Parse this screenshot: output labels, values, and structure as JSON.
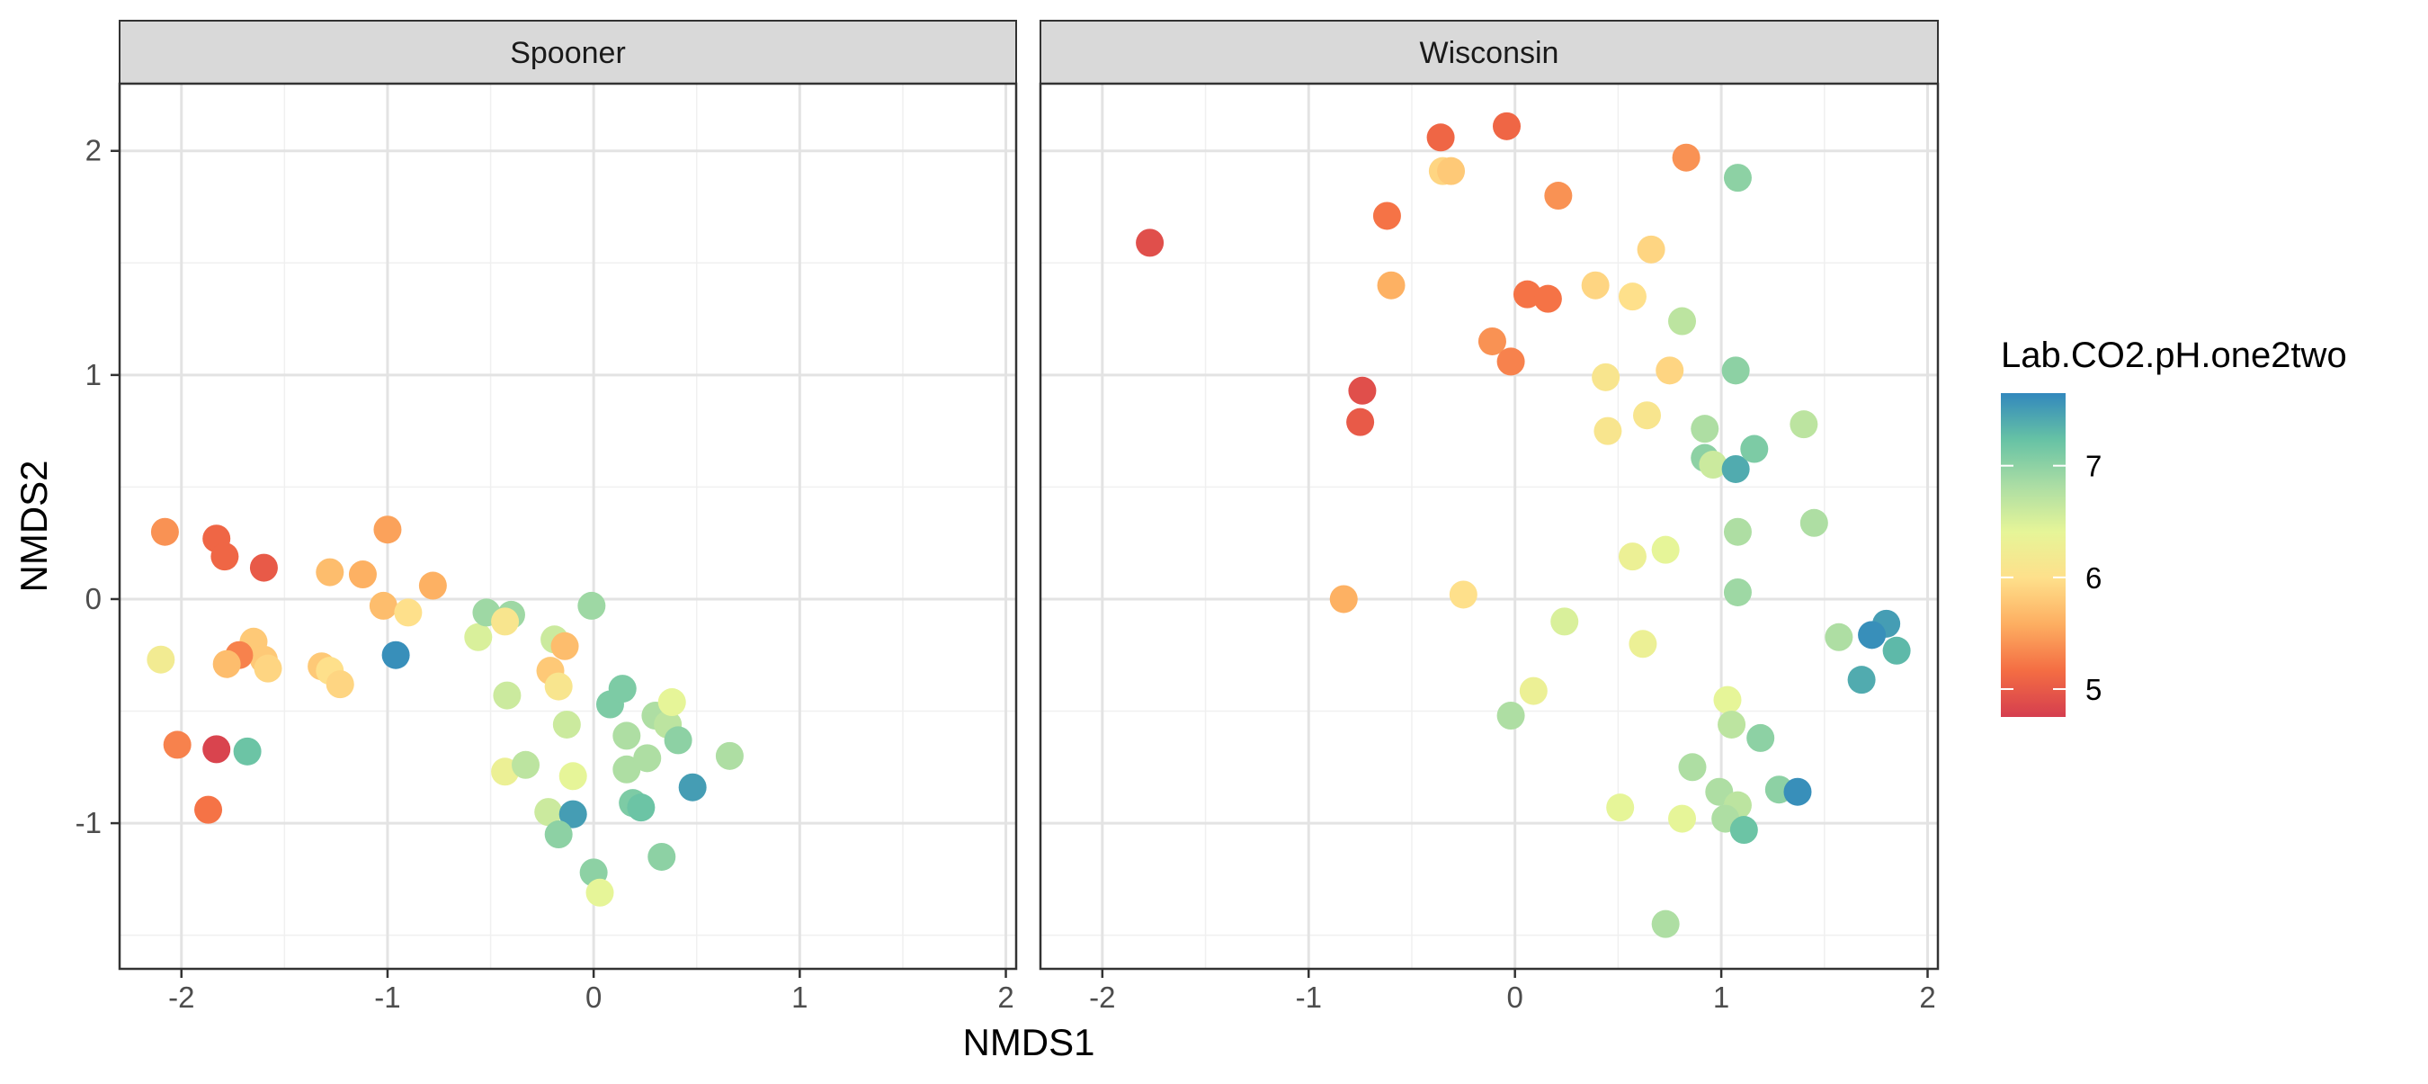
{
  "chart_data": {
    "type": "scatter",
    "facet_by": "site",
    "xlabel": "NMDS1",
    "ylabel": "NMDS2",
    "xlim": [
      -2.3,
      2.05
    ],
    "ylim": [
      -1.65,
      2.3
    ],
    "x_ticks": [
      -2,
      -1,
      0,
      1,
      2
    ],
    "y_ticks": [
      -1,
      0,
      1,
      2
    ],
    "x_tick_labels": [
      "-2",
      "-1",
      "0",
      "1",
      "2"
    ],
    "y_tick_labels": [
      "-1",
      "0",
      "1",
      "2"
    ],
    "grid": true,
    "legend": {
      "title": "Lab.CO2.pH.one2two",
      "placement": "right",
      "type": "colorbar",
      "min": 4.75,
      "max": 7.65,
      "ticks": [
        5,
        6,
        7
      ],
      "tick_labels": [
        "5",
        "6",
        "7"
      ],
      "colors": [
        "#d53e4f",
        "#f46d43",
        "#fdae61",
        "#fee08b",
        "#e6f598",
        "#abdda4",
        "#66c2a5",
        "#3288bd"
      ]
    },
    "panels": [
      {
        "name": "Spooner",
        "points": [
          {
            "x": -2.08,
            "y": 0.3,
            "ph": 5.4
          },
          {
            "x": -1.83,
            "y": 0.27,
            "ph": 5.1
          },
          {
            "x": -1.79,
            "y": 0.19,
            "ph": 5.1
          },
          {
            "x": -1.6,
            "y": 0.14,
            "ph": 5.0
          },
          {
            "x": -1.28,
            "y": 0.12,
            "ph": 5.7
          },
          {
            "x": -1.12,
            "y": 0.11,
            "ph": 5.6
          },
          {
            "x": -1.0,
            "y": 0.31,
            "ph": 5.5
          },
          {
            "x": -0.78,
            "y": 0.06,
            "ph": 5.6
          },
          {
            "x": -1.02,
            "y": -0.03,
            "ph": 5.7
          },
          {
            "x": -0.9,
            "y": -0.06,
            "ph": 6.0
          },
          {
            "x": -2.1,
            "y": -0.27,
            "ph": 6.2
          },
          {
            "x": -1.65,
            "y": -0.19,
            "ph": 5.8
          },
          {
            "x": -1.6,
            "y": -0.27,
            "ph": 5.8
          },
          {
            "x": -1.72,
            "y": -0.25,
            "ph": 5.3
          },
          {
            "x": -1.78,
            "y": -0.29,
            "ph": 5.7
          },
          {
            "x": -1.58,
            "y": -0.31,
            "ph": 5.9
          },
          {
            "x": -1.32,
            "y": -0.3,
            "ph": 5.8
          },
          {
            "x": -1.28,
            "y": -0.32,
            "ph": 6.0
          },
          {
            "x": -1.23,
            "y": -0.38,
            "ph": 5.9
          },
          {
            "x": -0.96,
            "y": -0.25,
            "ph": 7.6
          },
          {
            "x": -2.02,
            "y": -0.65,
            "ph": 5.3
          },
          {
            "x": -1.83,
            "y": -0.67,
            "ph": 4.8
          },
          {
            "x": -1.68,
            "y": -0.68,
            "ph": 7.2
          },
          {
            "x": -1.87,
            "y": -0.94,
            "ph": 5.2
          },
          {
            "x": -0.56,
            "y": -0.17,
            "ph": 6.5
          },
          {
            "x": -0.52,
            "y": -0.06,
            "ph": 6.9
          },
          {
            "x": -0.4,
            "y": -0.07,
            "ph": 6.9
          },
          {
            "x": -0.43,
            "y": -0.1,
            "ph": 6.1
          },
          {
            "x": -0.42,
            "y": -0.43,
            "ph": 6.6
          },
          {
            "x": -0.19,
            "y": -0.18,
            "ph": 6.6
          },
          {
            "x": -0.14,
            "y": -0.21,
            "ph": 5.7
          },
          {
            "x": -0.21,
            "y": -0.32,
            "ph": 5.8
          },
          {
            "x": -0.17,
            "y": -0.39,
            "ph": 6.1
          },
          {
            "x": -0.13,
            "y": -0.56,
            "ph": 6.6
          },
          {
            "x": -0.01,
            "y": -0.03,
            "ph": 6.9
          },
          {
            "x": -0.43,
            "y": -0.77,
            "ph": 6.3
          },
          {
            "x": -0.33,
            "y": -0.74,
            "ph": 6.7
          },
          {
            "x": -0.1,
            "y": -0.79,
            "ph": 6.4
          },
          {
            "x": -0.22,
            "y": -0.95,
            "ph": 6.6
          },
          {
            "x": -0.1,
            "y": -0.96,
            "ph": 7.5
          },
          {
            "x": -0.17,
            "y": -1.05,
            "ph": 7.0
          },
          {
            "x": 0.0,
            "y": -1.22,
            "ph": 7.0
          },
          {
            "x": 0.03,
            "y": -1.31,
            "ph": 6.4
          },
          {
            "x": 0.08,
            "y": -0.47,
            "ph": 7.1
          },
          {
            "x": 0.14,
            "y": -0.4,
            "ph": 7.1
          },
          {
            "x": 0.16,
            "y": -0.61,
            "ph": 6.8
          },
          {
            "x": 0.16,
            "y": -0.76,
            "ph": 6.8
          },
          {
            "x": 0.26,
            "y": -0.71,
            "ph": 6.8
          },
          {
            "x": 0.3,
            "y": -0.52,
            "ph": 6.8
          },
          {
            "x": 0.36,
            "y": -0.56,
            "ph": 6.7
          },
          {
            "x": 0.38,
            "y": -0.46,
            "ph": 6.4
          },
          {
            "x": 0.41,
            "y": -0.63,
            "ph": 7.0
          },
          {
            "x": 0.19,
            "y": -0.91,
            "ph": 7.1
          },
          {
            "x": 0.23,
            "y": -0.93,
            "ph": 7.2
          },
          {
            "x": 0.33,
            "y": -1.15,
            "ph": 7.0
          },
          {
            "x": 0.48,
            "y": -0.84,
            "ph": 7.5
          },
          {
            "x": 0.66,
            "y": -0.7,
            "ph": 6.8
          }
        ]
      },
      {
        "name": "Wisconsin",
        "points": [
          {
            "x": -1.77,
            "y": 1.59,
            "ph": 4.9
          },
          {
            "x": -0.36,
            "y": 2.06,
            "ph": 5.1
          },
          {
            "x": -0.04,
            "y": 2.11,
            "ph": 5.1
          },
          {
            "x": -0.35,
            "y": 1.91,
            "ph": 5.9
          },
          {
            "x": -0.31,
            "y": 1.91,
            "ph": 5.8
          },
          {
            "x": -0.62,
            "y": 1.71,
            "ph": 5.2
          },
          {
            "x": 0.21,
            "y": 1.8,
            "ph": 5.4
          },
          {
            "x": 0.83,
            "y": 1.97,
            "ph": 5.4
          },
          {
            "x": 1.08,
            "y": 1.88,
            "ph": 7.0
          },
          {
            "x": -0.6,
            "y": 1.4,
            "ph": 5.6
          },
          {
            "x": 0.06,
            "y": 1.36,
            "ph": 5.2
          },
          {
            "x": 0.16,
            "y": 1.34,
            "ph": 5.2
          },
          {
            "x": 0.39,
            "y": 1.4,
            "ph": 5.9
          },
          {
            "x": 0.57,
            "y": 1.35,
            "ph": 6.0
          },
          {
            "x": 0.66,
            "y": 1.56,
            "ph": 5.9
          },
          {
            "x": 0.81,
            "y": 1.24,
            "ph": 6.7
          },
          {
            "x": -0.11,
            "y": 1.15,
            "ph": 5.4
          },
          {
            "x": -0.02,
            "y": 1.06,
            "ph": 5.3
          },
          {
            "x": -0.74,
            "y": 0.93,
            "ph": 4.9
          },
          {
            "x": -0.75,
            "y": 0.79,
            "ph": 5.0
          },
          {
            "x": 0.44,
            "y": 0.99,
            "ph": 6.1
          },
          {
            "x": 0.75,
            "y": 1.02,
            "ph": 5.9
          },
          {
            "x": 1.07,
            "y": 1.02,
            "ph": 7.0
          },
          {
            "x": 0.45,
            "y": 0.75,
            "ph": 6.1
          },
          {
            "x": 0.64,
            "y": 0.82,
            "ph": 6.1
          },
          {
            "x": 0.92,
            "y": 0.76,
            "ph": 6.8
          },
          {
            "x": 0.92,
            "y": 0.63,
            "ph": 7.0
          },
          {
            "x": 0.96,
            "y": 0.6,
            "ph": 6.6
          },
          {
            "x": 1.07,
            "y": 0.58,
            "ph": 7.4
          },
          {
            "x": 1.16,
            "y": 0.67,
            "ph": 7.1
          },
          {
            "x": 1.4,
            "y": 0.78,
            "ph": 6.7
          },
          {
            "x": 1.45,
            "y": 0.34,
            "ph": 6.8
          },
          {
            "x": 1.08,
            "y": 0.3,
            "ph": 6.8
          },
          {
            "x": 0.57,
            "y": 0.19,
            "ph": 6.3
          },
          {
            "x": 0.73,
            "y": 0.22,
            "ph": 6.4
          },
          {
            "x": 1.08,
            "y": 0.03,
            "ph": 6.9
          },
          {
            "x": -0.83,
            "y": 0.0,
            "ph": 5.6
          },
          {
            "x": -0.25,
            "y": 0.02,
            "ph": 6.0
          },
          {
            "x": 0.24,
            "y": -0.1,
            "ph": 6.5
          },
          {
            "x": 0.62,
            "y": -0.2,
            "ph": 6.3
          },
          {
            "x": 1.57,
            "y": -0.17,
            "ph": 6.8
          },
          {
            "x": 1.8,
            "y": -0.11,
            "ph": 7.5
          },
          {
            "x": 1.73,
            "y": -0.16,
            "ph": 7.6
          },
          {
            "x": 1.85,
            "y": -0.23,
            "ph": 7.3
          },
          {
            "x": 1.68,
            "y": -0.36,
            "ph": 7.4
          },
          {
            "x": 0.09,
            "y": -0.41,
            "ph": 6.3
          },
          {
            "x": -0.02,
            "y": -0.52,
            "ph": 6.8
          },
          {
            "x": 1.03,
            "y": -0.45,
            "ph": 6.4
          },
          {
            "x": 1.05,
            "y": -0.56,
            "ph": 6.7
          },
          {
            "x": 1.19,
            "y": -0.62,
            "ph": 7.0
          },
          {
            "x": 0.86,
            "y": -0.75,
            "ph": 6.8
          },
          {
            "x": 0.99,
            "y": -0.86,
            "ph": 6.8
          },
          {
            "x": 1.08,
            "y": -0.92,
            "ph": 6.7
          },
          {
            "x": 1.28,
            "y": -0.85,
            "ph": 7.0
          },
          {
            "x": 1.37,
            "y": -0.86,
            "ph": 7.6
          },
          {
            "x": 0.51,
            "y": -0.93,
            "ph": 6.4
          },
          {
            "x": 0.81,
            "y": -0.98,
            "ph": 6.4
          },
          {
            "x": 1.02,
            "y": -0.98,
            "ph": 6.8
          },
          {
            "x": 1.11,
            "y": -1.03,
            "ph": 7.2
          },
          {
            "x": 0.73,
            "y": -1.45,
            "ph": 6.8
          }
        ]
      }
    ]
  }
}
